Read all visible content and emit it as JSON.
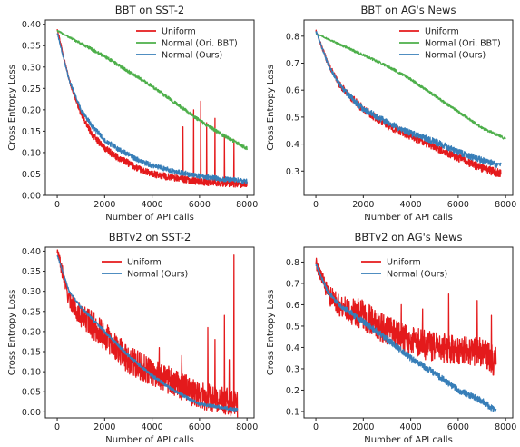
{
  "chart_data": [
    {
      "type": "line",
      "title": "BBT on SST-2",
      "xlabel": "Number of API calls",
      "ylabel": "Cross Entropy Loss",
      "xlim": [
        -500,
        8300
      ],
      "ylim": [
        0.0,
        0.41
      ],
      "xticks": [
        0,
        2000,
        4000,
        6000,
        8000
      ],
      "xtick_labels": [
        "0",
        "2000",
        "4000",
        "6000",
        "8000"
      ],
      "yticks": [
        0.0,
        0.05,
        0.1,
        0.15,
        0.2,
        0.25,
        0.3,
        0.35,
        0.4
      ],
      "ytick_labels": [
        "0.00",
        "0.05",
        "0.10",
        "0.15",
        "0.20",
        "0.25",
        "0.30",
        "0.35",
        "0.40"
      ],
      "grid": false,
      "legend": "top-right",
      "series": [
        {
          "name": "Uniform",
          "color": "#e41a1c",
          "noise": 0.008,
          "spikes": [
            [
              5300,
              0.16
            ],
            [
              5750,
              0.2
            ],
            [
              6050,
              0.22
            ],
            [
              6300,
              0.17
            ],
            [
              6650,
              0.18
            ],
            [
              7050,
              0.14
            ],
            [
              7450,
              0.13
            ]
          ],
          "x": [
            0,
            500,
            1000,
            1500,
            2000,
            2500,
            3000,
            3500,
            4000,
            5000,
            6000,
            7000,
            8000
          ],
          "values": [
            0.39,
            0.27,
            0.19,
            0.14,
            0.11,
            0.09,
            0.075,
            0.06,
            0.05,
            0.04,
            0.032,
            0.028,
            0.025
          ]
        },
        {
          "name": "Normal (Ori. BBT)",
          "color": "#4daf4a",
          "noise": 0.004,
          "spikes": [],
          "x": [
            0,
            1000,
            2000,
            3000,
            4000,
            5000,
            6000,
            7000,
            8000
          ],
          "values": [
            0.385,
            0.355,
            0.325,
            0.29,
            0.255,
            0.215,
            0.175,
            0.14,
            0.11
          ]
        },
        {
          "name": "Normal (Ours)",
          "color": "#377eb8",
          "noise": 0.006,
          "spikes": [],
          "x": [
            0,
            500,
            1000,
            1500,
            2000,
            2500,
            3000,
            3500,
            4000,
            5000,
            6000,
            7000,
            8000
          ],
          "values": [
            0.38,
            0.27,
            0.2,
            0.16,
            0.13,
            0.11,
            0.095,
            0.08,
            0.07,
            0.055,
            0.045,
            0.038,
            0.033
          ]
        }
      ]
    },
    {
      "type": "line",
      "title": "BBT on AG's News",
      "xlabel": "Number of API calls",
      "ylabel": "Cross Entropy Loss",
      "xlim": [
        -500,
        8300
      ],
      "ylim": [
        0.21,
        0.86
      ],
      "xticks": [
        0,
        2000,
        4000,
        6000,
        8000
      ],
      "xtick_labels": [
        "0",
        "2000",
        "4000",
        "6000",
        "8000"
      ],
      "yticks": [
        0.3,
        0.4,
        0.5,
        0.6,
        0.7,
        0.8
      ],
      "ytick_labels": [
        "0.3",
        "0.4",
        "0.5",
        "0.6",
        "0.7",
        "0.8"
      ],
      "grid": false,
      "legend": "top-right",
      "series": [
        {
          "name": "Uniform",
          "color": "#e41a1c",
          "noise": 0.015,
          "spikes": [],
          "x": [
            0,
            500,
            1000,
            1500,
            2000,
            3000,
            4000,
            5000,
            6000,
            7000,
            7800
          ],
          "values": [
            0.82,
            0.7,
            0.62,
            0.57,
            0.53,
            0.47,
            0.43,
            0.39,
            0.35,
            0.31,
            0.29
          ]
        },
        {
          "name": "Normal (Ori. BBT)",
          "color": "#4daf4a",
          "noise": 0.005,
          "spikes": [],
          "x": [
            0,
            1000,
            2000,
            3000,
            4000,
            5000,
            6000,
            7000,
            8000
          ],
          "values": [
            0.81,
            0.77,
            0.73,
            0.69,
            0.64,
            0.58,
            0.52,
            0.46,
            0.42
          ]
        },
        {
          "name": "Normal (Ours)",
          "color": "#377eb8",
          "noise": 0.012,
          "spikes": [],
          "x": [
            0,
            500,
            1000,
            1500,
            2000,
            3000,
            4000,
            5000,
            6000,
            7000,
            7800
          ],
          "values": [
            0.82,
            0.7,
            0.62,
            0.57,
            0.53,
            0.48,
            0.44,
            0.41,
            0.37,
            0.34,
            0.32
          ]
        }
      ]
    },
    {
      "type": "line",
      "title": "BBTv2 on SST-2",
      "xlabel": "Number of API calls",
      "ylabel": "Cross Entropy Loss",
      "xlim": [
        -500,
        8300
      ],
      "ylim": [
        -0.015,
        0.41
      ],
      "xticks": [
        0,
        2000,
        4000,
        6000,
        8000
      ],
      "xtick_labels": [
        "0",
        "2000",
        "4000",
        "6000",
        "8000"
      ],
      "yticks": [
        0.0,
        0.05,
        0.1,
        0.15,
        0.2,
        0.25,
        0.3,
        0.35,
        0.4
      ],
      "ytick_labels": [
        "0.00",
        "0.05",
        "0.10",
        "0.15",
        "0.20",
        "0.25",
        "0.30",
        "0.35",
        "0.40"
      ],
      "grid": false,
      "legend": "top-center",
      "series": [
        {
          "name": "Uniform",
          "color": "#e41a1c",
          "noise": 0.035,
          "spikes": [
            [
              4300,
              0.16
            ],
            [
              5250,
              0.14
            ],
            [
              6350,
              0.21
            ],
            [
              6650,
              0.18
            ],
            [
              7050,
              0.24
            ],
            [
              7250,
              0.13
            ],
            [
              7450,
              0.39
            ]
          ],
          "x": [
            0,
            500,
            1000,
            2000,
            3000,
            4000,
            5000,
            6000,
            7000,
            7600
          ],
          "values": [
            0.4,
            0.28,
            0.24,
            0.19,
            0.13,
            0.1,
            0.07,
            0.04,
            0.03,
            0.02
          ]
        },
        {
          "name": "Normal (Ours)",
          "color": "#377eb8",
          "noise": 0.004,
          "spikes": [],
          "x": [
            0,
            500,
            1000,
            2000,
            3000,
            4000,
            5000,
            6000,
            7000,
            7600
          ],
          "values": [
            0.39,
            0.3,
            0.26,
            0.2,
            0.14,
            0.09,
            0.05,
            0.02,
            0.01,
            0.005
          ]
        }
      ]
    },
    {
      "type": "line",
      "title": "BBTv2 on AG's News",
      "xlabel": "Number of API calls",
      "ylabel": "Cross Entropy Loss",
      "xlim": [
        -500,
        8300
      ],
      "ylim": [
        0.07,
        0.87
      ],
      "xticks": [
        0,
        2000,
        4000,
        6000,
        8000
      ],
      "xtick_labels": [
        "0",
        "2000",
        "4000",
        "6000",
        "8000"
      ],
      "yticks": [
        0.1,
        0.2,
        0.3,
        0.4,
        0.5,
        0.6,
        0.7,
        0.8
      ],
      "ytick_labels": [
        "0.1",
        "0.2",
        "0.3",
        "0.4",
        "0.5",
        "0.6",
        "0.7",
        "0.8"
      ],
      "grid": false,
      "legend": "top-center",
      "series": [
        {
          "name": "Uniform",
          "color": "#e41a1c",
          "noise": 0.07,
          "spikes": [
            [
              3600,
              0.6
            ],
            [
              4500,
              0.58
            ],
            [
              5600,
              0.65
            ],
            [
              6800,
              0.62
            ],
            [
              7400,
              0.55
            ]
          ],
          "x": [
            0,
            500,
            1000,
            2000,
            3000,
            4000,
            5000,
            6000,
            7000,
            7600
          ],
          "values": [
            0.8,
            0.65,
            0.6,
            0.55,
            0.48,
            0.43,
            0.4,
            0.39,
            0.38,
            0.33
          ]
        },
        {
          "name": "Normal (Ours)",
          "color": "#377eb8",
          "noise": 0.015,
          "spikes": [],
          "x": [
            0,
            500,
            1000,
            2000,
            3000,
            4000,
            5000,
            6000,
            7000,
            7600
          ],
          "values": [
            0.79,
            0.66,
            0.6,
            0.52,
            0.44,
            0.35,
            0.28,
            0.2,
            0.15,
            0.1
          ]
        }
      ]
    }
  ]
}
